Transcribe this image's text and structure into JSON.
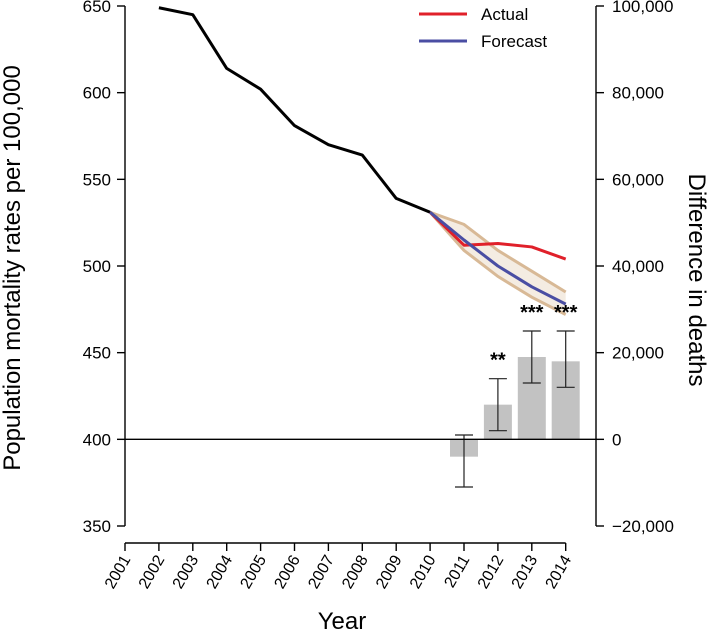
{
  "chart_data": {
    "type": "line",
    "xlabel": "Year",
    "ylabel_left": "Population mortality rates per 100,000",
    "ylabel_right": "Difference in deaths",
    "x": [
      2001,
      2002,
      2003,
      2004,
      2005,
      2006,
      2007,
      2008,
      2009,
      2010,
      2011,
      2012,
      2013,
      2014
    ],
    "ylim_left": [
      350,
      650
    ],
    "yticks_left": [
      350,
      400,
      450,
      500,
      550,
      600,
      650
    ],
    "ylim_right": [
      -20000,
      100000
    ],
    "yticks_right": [
      -20000,
      0,
      20000,
      40000,
      60000,
      80000,
      100000
    ],
    "ytick_labels_right": [
      "−20,000",
      "0",
      "20,000",
      "40,000",
      "60,000",
      "80,000",
      "100,000"
    ],
    "series": [
      {
        "role": "observed",
        "color": "#000000",
        "x": [
          2002,
          2003,
          2004,
          2005,
          2006,
          2007,
          2008,
          2009,
          2010
        ],
        "values": [
          649,
          645,
          614,
          602,
          581,
          570,
          564,
          539,
          531
        ]
      },
      {
        "name": "Actual",
        "color": "#e0202a",
        "x": [
          2010,
          2011,
          2012,
          2013,
          2014
        ],
        "values": [
          531,
          512,
          513,
          511,
          504
        ]
      },
      {
        "name": "Forecast",
        "color": "#4a4ea3",
        "x": [
          2010,
          2011,
          2012,
          2013,
          2014
        ],
        "values": [
          531,
          515,
          500,
          488,
          478
        ]
      }
    ],
    "forecast_band": {
      "color": "#d8b996",
      "x": [
        2010,
        2011,
        2012,
        2013,
        2014
      ],
      "upper": [
        531,
        524,
        509,
        497,
        485
      ],
      "lower": [
        531,
        509,
        494,
        482,
        472
      ]
    },
    "bars": {
      "axis": "right",
      "color": "#c2c2c2",
      "x": [
        2011,
        2012,
        2013,
        2014
      ],
      "values": [
        -4000,
        8000,
        19000,
        18000
      ],
      "error_low": [
        -11000,
        2000,
        13000,
        12000
      ],
      "error_high": [
        1000,
        14000,
        25000,
        25000
      ],
      "annotations": [
        "",
        "**",
        "***",
        "***"
      ]
    },
    "zero_line": {
      "axis": "right",
      "value": 0
    },
    "legend": {
      "placement": "top-right",
      "entries": [
        "Actual",
        "Forecast"
      ]
    }
  }
}
